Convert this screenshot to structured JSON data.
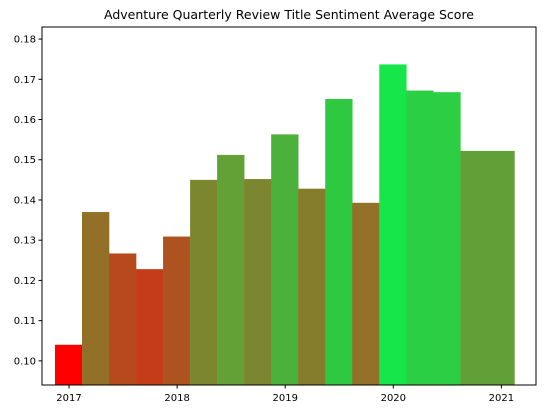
{
  "chart_data": {
    "type": "bar",
    "title": "Adventure Quarterly Review Title Sentiment Average Score",
    "xlabel": "",
    "ylabel": "",
    "x_unit": "year",
    "xlim": [
      2016.75,
      2021.32
    ],
    "ylim": [
      0.094,
      0.183
    ],
    "x_ticks": [
      2017,
      2018,
      2019,
      2020,
      2021
    ],
    "x_tick_labels": [
      "2017",
      "2018",
      "2019",
      "2020",
      "2021"
    ],
    "y_ticks": [
      0.1,
      0.11,
      0.12,
      0.13,
      0.14,
      0.15,
      0.16,
      0.17,
      0.18
    ],
    "y_tick_labels": [
      "0.10",
      "0.11",
      "0.12",
      "0.13",
      "0.14",
      "0.15",
      "0.16",
      "0.17",
      "0.18"
    ],
    "grid": false,
    "legend": "none",
    "bars": [
      {
        "x_start": 2016.87,
        "x_end": 2017.12,
        "value": 0.104,
        "color": "#ff0000"
      },
      {
        "x_start": 2017.12,
        "x_end": 2017.37,
        "value": 0.137,
        "color": "#927028"
      },
      {
        "x_start": 2017.37,
        "x_end": 2017.62,
        "value": 0.1267,
        "color": "#b74a1d"
      },
      {
        "x_start": 2017.62,
        "x_end": 2017.87,
        "value": 0.1228,
        "color": "#c43d18"
      },
      {
        "x_start": 2017.87,
        "x_end": 2018.12,
        "value": 0.1309,
        "color": "#ae5220"
      },
      {
        "x_start": 2018.12,
        "x_end": 2018.37,
        "value": 0.145,
        "color": "#7b872f"
      },
      {
        "x_start": 2018.37,
        "x_end": 2018.62,
        "value": 0.1512,
        "color": "#63a036"
      },
      {
        "x_start": 2018.62,
        "x_end": 2018.87,
        "value": 0.1452,
        "color": "#7c8630"
      },
      {
        "x_start": 2018.87,
        "x_end": 2019.12,
        "value": 0.1563,
        "color": "#4cb13a"
      },
      {
        "x_start": 2019.12,
        "x_end": 2019.37,
        "value": 0.1428,
        "color": "#857d2c"
      },
      {
        "x_start": 2019.37,
        "x_end": 2019.62,
        "value": 0.1651,
        "color": "#2fc841"
      },
      {
        "x_start": 2019.62,
        "x_end": 2019.87,
        "value": 0.1393,
        "color": "#937128"
      },
      {
        "x_start": 2019.87,
        "x_end": 2020.12,
        "value": 0.1737,
        "color": "#17e64a"
      },
      {
        "x_start": 2020.12,
        "x_end": 2020.37,
        "value": 0.1672,
        "color": "#2bcf43"
      },
      {
        "x_start": 2020.37,
        "x_end": 2020.62,
        "value": 0.1668,
        "color": "#2ccf43"
      },
      {
        "x_start": 2020.62,
        "x_end": 2021.12,
        "value": 0.1522,
        "color": "#60a037"
      }
    ]
  }
}
